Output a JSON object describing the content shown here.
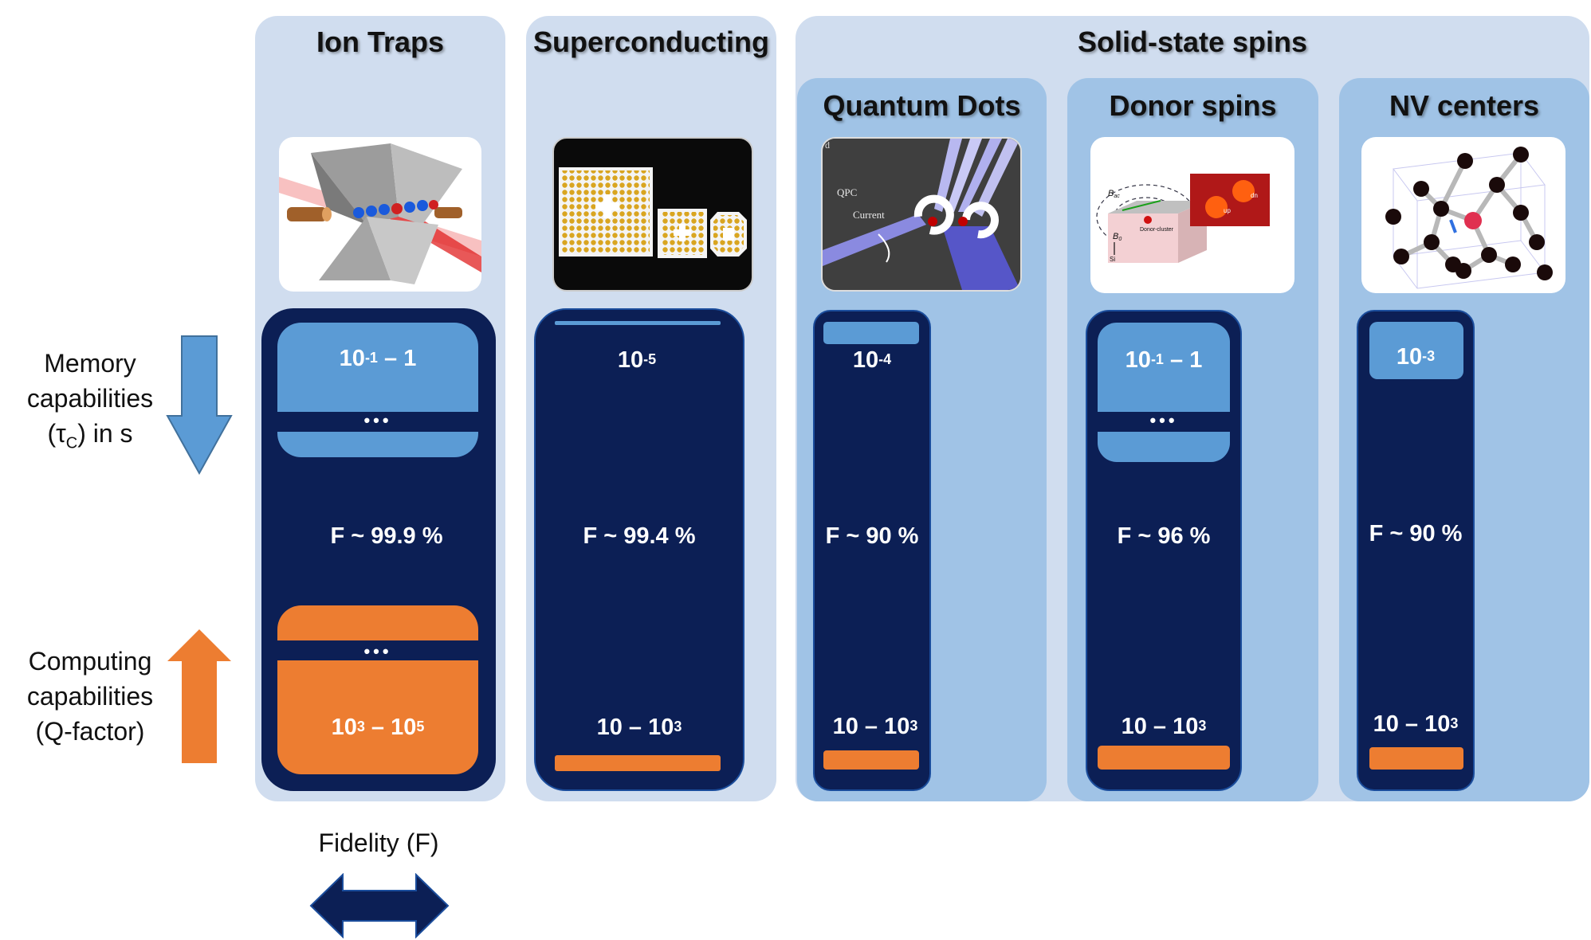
{
  "labels": {
    "memory_line1": "Memory",
    "memory_line2": "capabilities",
    "memory_line3_pre": "(τ",
    "memory_line3_sub": "C",
    "memory_line3_post": ") in s",
    "computing_line1": "Computing",
    "computing_line2": "capabilities",
    "computing_line3": "(Q-factor)",
    "fidelity": "Fidelity (F)"
  },
  "group_title": "Solid-state spins",
  "ellipsis": "•••",
  "columns": [
    {
      "title": "Ion Traps",
      "memory_base": "10",
      "memory_exp": "-1",
      "memory_tail": " – 1",
      "fidelity": "F ~ 99.9 %",
      "q_base1": "10",
      "q_exp1": "3",
      "q_mid": " – 10",
      "q_exp2": "5",
      "image": "ion-trap-electrodes"
    },
    {
      "title": "Superconducting",
      "memory_base": "10",
      "memory_exp": "-5",
      "memory_tail": "",
      "fidelity": "F ~ 99.4 %",
      "q_base1": "10",
      "q_mid": " – 10",
      "q_exp2": "3",
      "image": "superconducting-chip"
    },
    {
      "title": "Quantum Dots",
      "memory_base": "10",
      "memory_exp": "-4",
      "memory_tail": "",
      "fidelity": "F ~ 90 %",
      "q_base1": "10",
      "q_mid": " – 10",
      "q_exp2": "3",
      "image": "quantum-dot-gates"
    },
    {
      "title": "Donor spins",
      "memory_base": "10",
      "memory_exp": "-1",
      "memory_tail": " – 1",
      "fidelity": "F ~ 96 %",
      "q_base1": "10",
      "q_mid": " – 10",
      "q_exp2": "3",
      "image": "donor-spin-device"
    },
    {
      "title": "NV centers",
      "memory_base": "10",
      "memory_exp": "-3",
      "memory_tail": "",
      "fidelity": "F ~ 90 %",
      "q_base1": "10",
      "q_mid": " – 10",
      "q_exp2": "3",
      "image": "diamond-lattice"
    }
  ],
  "image_text": {
    "qpc": "QPC",
    "current": "Current",
    "panel_letter": "d",
    "b_ac": "B",
    "b_ac_sub": "ac",
    "b_0": "B",
    "b_0_sub": "0",
    "si": "Si",
    "donor_cluster": "Donor-cluster",
    "up": "up",
    "dn": "dn"
  },
  "colors": {
    "navy": "#0a1f5c",
    "memory_blue": "#5b9bd5",
    "computing_orange": "#ed7d31",
    "panel_light": "#d0ddef",
    "panel_mid": "#a0c3e6"
  }
}
